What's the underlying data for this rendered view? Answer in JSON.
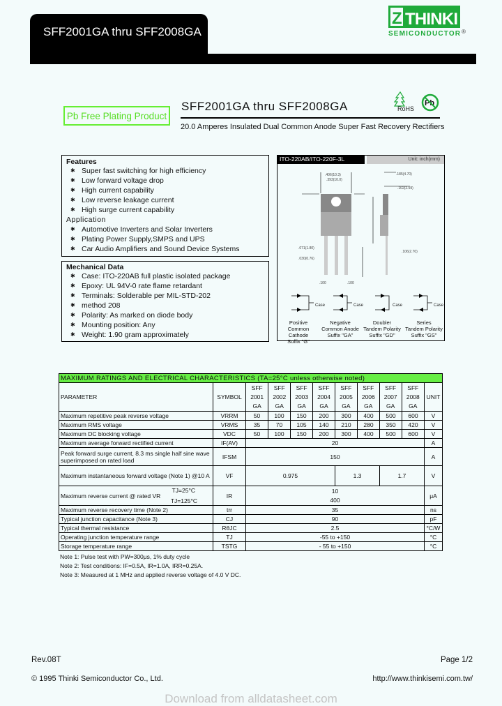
{
  "header": {
    "title": "SFF2001GA thru SFF2008GA"
  },
  "logo": {
    "name": "THINKI",
    "sub": "SEMICONDUCTOR",
    "reg": "®",
    "color": "#1faa3a"
  },
  "badge": {
    "text": "Pb Free Plating Product",
    "color": "#55dd22"
  },
  "title": "SFF2001GA thru SFF2008GA",
  "subtitle": "20.0 Amperes Insulated Dual Common Anode Super Fast Recovery Rectifiers",
  "icons": {
    "rohs": "RoHS",
    "pb": "Pb"
  },
  "features": {
    "heading": "Features",
    "items": [
      "Super fast switching for high efficiency",
      "Low forward voltage drop",
      "High current capability",
      "Low reverse leakage current",
      "High surge current capability"
    ],
    "app_heading": "Application",
    "app_items": [
      "Automotive Inverters and Solar Inverters",
      "Plating Power Supply,SMPS and UPS",
      "Car Audio Amplifiers and Sound Device Systems"
    ]
  },
  "mechanical": {
    "heading": "Mechanical Data",
    "items": [
      "Case: ITO-220AB full plastic isolated package",
      "Epoxy: UL 94V-0 rate flame retardant",
      "Terminals: Solderable per MIL-STD-202",
      "Polarity: As marked on diode body",
      "Mounting position: Any",
      "Weight: 1.90 gram approximately"
    ],
    "method": "method 208"
  },
  "diagram": {
    "package": "ITO-220AB/ITO-220F-3L",
    "unit": "Unit: inch(mm)",
    "configs": [
      {
        "l1": "Positive",
        "l2": "Common Cathode",
        "l3": "Suffix \"G\""
      },
      {
        "l1": "Negative",
        "l2": "Common Anode",
        "l3": "Suffix \"GA\""
      },
      {
        "l1": "Doubler",
        "l2": "Tandem Polarity",
        "l3": "Suffix \"GD\""
      },
      {
        "l1": "Series",
        "l2": "Tandem Polarity",
        "l3": "Suffix \"GS\""
      }
    ],
    "case": "Case"
  },
  "table": {
    "title": "MAXIMUM RATINGS AND ELECTRICAL CHARACTERISTICS (TA=25°C unless otherwise noted)",
    "h_param": "PARAMETER",
    "h_symbol": "SYMBOL",
    "h_unit": "UNIT",
    "parts": [
      [
        "SFF",
        "2001",
        "GA"
      ],
      [
        "SFF",
        "2002",
        "GA"
      ],
      [
        "SFF",
        "2003",
        "GA"
      ],
      [
        "SFF",
        "2004",
        "GA"
      ],
      [
        "SFF",
        "2005",
        "GA"
      ],
      [
        "SFF",
        "2006",
        "GA"
      ],
      [
        "SFF",
        "2007",
        "GA"
      ],
      [
        "SFF",
        "2008",
        "GA"
      ]
    ],
    "r1": {
      "p": "Maximum repetitive peak reverse voltage",
      "s": "VRRM",
      "v": [
        "50",
        "100",
        "150",
        "200",
        "300",
        "400",
        "500",
        "600"
      ],
      "u": "V"
    },
    "r2": {
      "p": "Maximum RMS voltage",
      "s": "VRMS",
      "v": [
        "35",
        "70",
        "105",
        "140",
        "210",
        "280",
        "350",
        "420"
      ],
      "u": "V"
    },
    "r3": {
      "p": "Maximum DC blocking voltage",
      "s": "VDC",
      "v": [
        "50",
        "100",
        "150",
        "200",
        "300",
        "400",
        "500",
        "600"
      ],
      "u": "V"
    },
    "r4": {
      "p": "Maximum average forward rectified current",
      "s": "IF(AV)",
      "v": "20",
      "u": "A"
    },
    "r5": {
      "p": "Peak forward surge current, 8.3 ms single half sine wave superimposed on rated load",
      "s": "IFSM",
      "v": "150",
      "u": "A"
    },
    "r6": {
      "p": "Maximum instantaneous forward voltage    (Note 1) @10 A",
      "s": "VF",
      "v": [
        "0.975",
        "1.3",
        "1.7"
      ],
      "u": "V"
    },
    "r7": {
      "p": "Maximum reverse current @ rated VR",
      "c1": "TJ=25°C",
      "c2": "TJ=125°C",
      "s": "IR",
      "v1": "10",
      "v2": "400",
      "u": "μA"
    },
    "r8": {
      "p": "Maximum reverse recovery time (Note 2)",
      "s": "trr",
      "v": "35",
      "u": "ns"
    },
    "r9": {
      "p": "Typical junction capacitance (Note 3)",
      "s": "CJ",
      "v": "90",
      "u": "pF"
    },
    "r10": {
      "p": "Typical thermal resistance",
      "s": "RθJC",
      "v": "2.5",
      "u": "°C/W"
    },
    "r11": {
      "p": "Operating junction temperature range",
      "s": "TJ",
      "v": "-55 to +150",
      "u": "°C"
    },
    "r12": {
      "p": "Storage temperature range",
      "s": "TSTG",
      "v": "- 55 to +150",
      "u": "°C"
    }
  },
  "notes": [
    "Note 1: Pulse test with PW=300μs, 1% duty cycle",
    "Note 2: Test conditions: IF=0.5A, IR=1.0A, IRR=0.25A.",
    "Note 3: Measured at 1 MHz and applied reverse voltage of 4.0 V DC."
  ],
  "footer": {
    "rev": "Rev.08T",
    "page": "Page 1/2",
    "copyright": "©  1995  Thinki  Semiconductor  Co.,  Ltd.",
    "url": "http://www.thinkisemi.com.tw/"
  },
  "watermark": "Download from alldatasheet.com"
}
